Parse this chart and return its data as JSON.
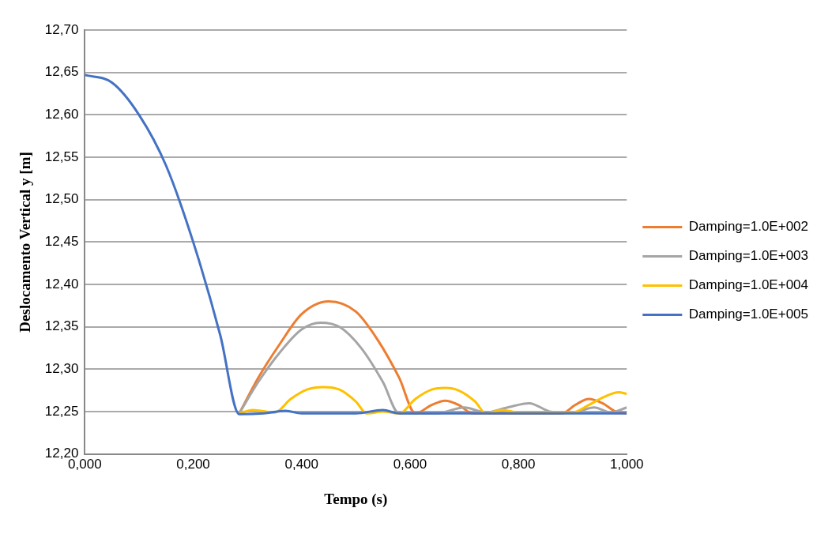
{
  "chart_data": {
    "type": "line",
    "xlabel": "Tempo (s)",
    "ylabel": "Deslocamento Vertical y [m]",
    "xlim": [
      0,
      1
    ],
    "xticks": [
      {
        "value": 0,
        "label": "0,000"
      },
      {
        "value": 0.2,
        "label": "0,200"
      },
      {
        "value": 0.4,
        "label": "0,400"
      },
      {
        "value": 0.6,
        "label": "0,600"
      },
      {
        "value": 0.8,
        "label": "0,800"
      },
      {
        "value": 1,
        "label": "1,000"
      }
    ],
    "ylim": [
      12.2,
      12.7
    ],
    "yticks": [
      {
        "value": 12.2,
        "label": "12,20"
      },
      {
        "value": 12.25,
        "label": "12,25"
      },
      {
        "value": 12.3,
        "label": "12,30"
      },
      {
        "value": 12.35,
        "label": "12,35"
      },
      {
        "value": 12.4,
        "label": "12,40"
      },
      {
        "value": 12.45,
        "label": "12,45"
      },
      {
        "value": 12.5,
        "label": "12,50"
      },
      {
        "value": 12.55,
        "label": "12,55"
      },
      {
        "value": 12.6,
        "label": "12,60"
      },
      {
        "value": 12.65,
        "label": "12,65"
      },
      {
        "value": 12.7,
        "label": "12,70"
      }
    ],
    "grid": "y",
    "legend": "right",
    "marker": "none",
    "line_style": "solid",
    "series": [
      {
        "name": "Damping=1.0E+002",
        "color": "#ed7d31",
        "x": [
          0.285,
          0.32,
          0.36,
          0.4,
          0.45,
          0.5,
          0.54,
          0.58,
          0.61,
          0.64,
          0.665,
          0.69,
          0.715,
          0.8,
          0.88,
          0.905,
          0.93,
          0.955,
          0.98,
          1.0
        ],
        "values": [
          12.248,
          12.29,
          12.33,
          12.365,
          12.38,
          12.368,
          12.335,
          12.29,
          12.248,
          12.258,
          12.263,
          12.258,
          12.248,
          12.248,
          12.248,
          12.258,
          12.265,
          12.26,
          12.25,
          12.248
        ]
      },
      {
        "name": "Damping=1.0E+003",
        "color": "#a5a5a5",
        "x": [
          0.285,
          0.32,
          0.36,
          0.4,
          0.435,
          0.47,
          0.51,
          0.55,
          0.58,
          0.65,
          0.7,
          0.74,
          0.78,
          0.82,
          0.86,
          0.9,
          0.94,
          0.97,
          1.0
        ],
        "values": [
          12.248,
          12.285,
          12.32,
          12.347,
          12.355,
          12.35,
          12.325,
          12.285,
          12.248,
          12.248,
          12.255,
          12.249,
          12.255,
          12.26,
          12.25,
          12.249,
          12.255,
          12.249,
          12.255
        ]
      },
      {
        "name": "Damping=1.0E+004",
        "color": "#ffc000",
        "x": [
          0.285,
          0.31,
          0.35,
          0.38,
          0.41,
          0.44,
          0.47,
          0.5,
          0.52,
          0.55,
          0.58,
          0.61,
          0.64,
          0.665,
          0.69,
          0.72,
          0.74,
          0.77,
          0.8,
          0.86,
          0.9,
          0.93,
          0.96,
          0.985,
          1.0
        ],
        "values": [
          12.248,
          12.252,
          12.249,
          12.265,
          12.276,
          12.279,
          12.276,
          12.262,
          12.248,
          12.25,
          12.248,
          12.265,
          12.276,
          12.278,
          12.275,
          12.262,
          12.248,
          12.252,
          12.249,
          12.249,
          12.249,
          12.258,
          12.268,
          12.273,
          12.271
        ]
      },
      {
        "name": "Damping=1.0E+005",
        "color": "#4472c4",
        "x": [
          0,
          0.05,
          0.1,
          0.15,
          0.2,
          0.25,
          0.285,
          0.33,
          0.37,
          0.4,
          0.5,
          0.55,
          0.58,
          0.7,
          0.8,
          0.9,
          1.0
        ],
        "values": [
          12.647,
          12.638,
          12.6,
          12.54,
          12.45,
          12.34,
          12.247,
          12.248,
          12.251,
          12.248,
          12.248,
          12.252,
          12.248,
          12.248,
          12.248,
          12.248,
          12.248
        ]
      }
    ]
  }
}
